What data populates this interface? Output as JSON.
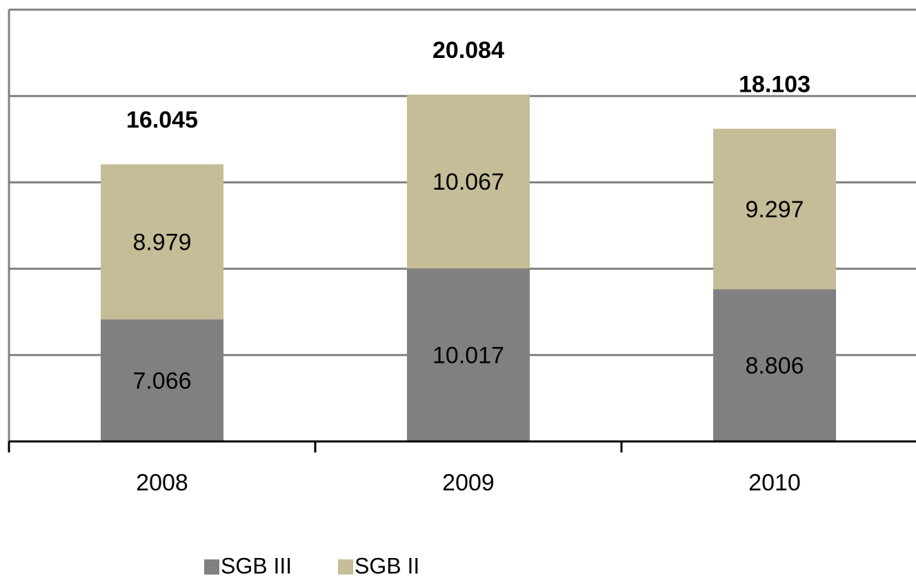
{
  "chart_data": {
    "type": "stacked-bar",
    "categories": [
      "2008",
      "2009",
      "2010"
    ],
    "series": [
      {
        "name": "SGB III",
        "color": "#808080",
        "values": [
          7.066,
          10.017,
          8.806
        ]
      },
      {
        "name": "SGB II",
        "color": "#c4bd97",
        "values": [
          8.979,
          10.067,
          9.297
        ]
      }
    ],
    "totals": [
      16.045,
      20.084,
      18.103
    ],
    "ylim": [
      0,
      25
    ],
    "yticks": [
      0,
      5,
      10,
      15,
      20,
      25
    ],
    "grid": true
  }
}
